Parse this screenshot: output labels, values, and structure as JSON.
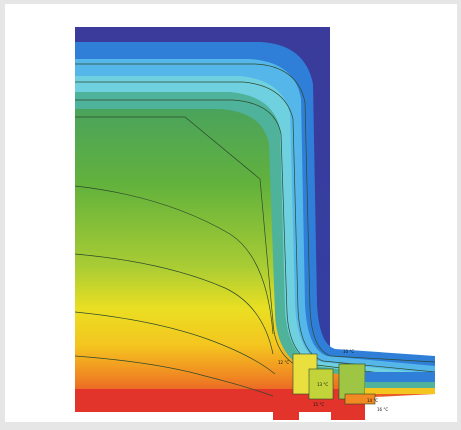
{
  "figure": {
    "type": "thermal-isotherm-simulation",
    "colors": {
      "background": "#e6e6e6",
      "panel": "#ffffff",
      "cold": "#3a3b9a",
      "blue": "#2f7fd9",
      "cyan": "#55c7e8",
      "teal": "#4aa99a",
      "green": "#5fae3a",
      "lime": "#b7d033",
      "yellow": "#f5e51f",
      "orange": "#f29a1f",
      "red": "#e2342a",
      "isoline": "#2d4a2b"
    },
    "isotherm_labels": [
      "10 °C",
      "12 °C",
      "13 °C",
      "14 °C",
      "15 °C",
      "16 °C"
    ]
  }
}
